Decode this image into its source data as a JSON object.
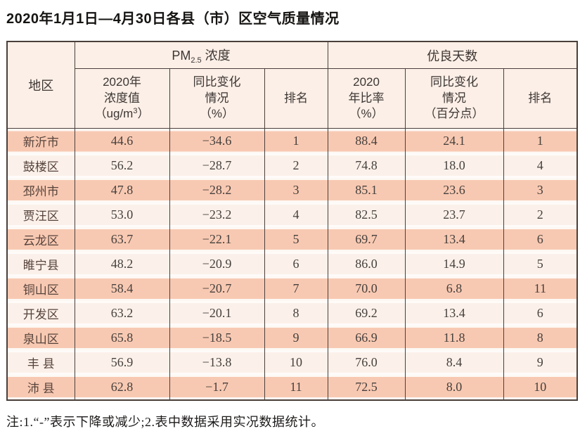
{
  "page": {
    "title": "2020年1月1日—4月30日各县（市）区空气质量情况",
    "note": "注:1.“-”表示下降或减少;2.表中数据采用实况数据统计。"
  },
  "table": {
    "header": {
      "region": "地区",
      "pm25": {
        "prefix": "PM",
        "sub": "2.5",
        "suffix": " 浓度"
      },
      "good_days": "优良天数",
      "pm_value": {
        "l1": "2020年",
        "l2": "浓度值",
        "l3_pre": "（ug/m",
        "l3_sup": "3",
        "l3_post": "）"
      },
      "pm_change": {
        "l1": "同比变化",
        "l2": "情况",
        "l3": "（%）"
      },
      "pm_rank": "排名",
      "gd_ratio": {
        "l1": "2020",
        "l2": "年比率",
        "l3": "（%）"
      },
      "gd_change": {
        "l1": "同比变化",
        "l2": "情况",
        "l3": "（百分点）"
      },
      "gd_rank": "排名"
    }
  },
  "chart_data": {
    "type": "table",
    "title": "2020年1月1日—4月30日各县（市）区空气质量情况",
    "column_groups": [
      "地区",
      "PM2.5浓度",
      "优良天数"
    ],
    "columns": [
      "地区",
      "2020年浓度值（ug/m3）",
      "同比变化情况（%）",
      "排名",
      "2020年比率（%）",
      "同比变化情况（百分点）",
      "排名"
    ],
    "rows": [
      [
        "新沂市",
        "44.6",
        "−34.6",
        "1",
        "88.4",
        "24.1",
        "1"
      ],
      [
        "鼓楼区",
        "56.2",
        "−28.7",
        "2",
        "74.8",
        "18.0",
        "4"
      ],
      [
        "邳州市",
        "47.8",
        "−28.2",
        "3",
        "85.1",
        "23.6",
        "3"
      ],
      [
        "贾汪区",
        "53.0",
        "−23.2",
        "4",
        "82.5",
        "23.7",
        "2"
      ],
      [
        "云龙区",
        "63.7",
        "−22.1",
        "5",
        "69.7",
        "13.4",
        "6"
      ],
      [
        "睢宁县",
        "48.2",
        "−20.9",
        "6",
        "86.0",
        "14.9",
        "5"
      ],
      [
        "铜山区",
        "58.4",
        "−20.7",
        "7",
        "70.0",
        "6.8",
        "11"
      ],
      [
        "开发区",
        "63.2",
        "−20.1",
        "8",
        "69.2",
        "13.4",
        "6"
      ],
      [
        "泉山区",
        "65.8",
        "−18.5",
        "9",
        "66.9",
        "11.8",
        "8"
      ],
      [
        "丰 县",
        "56.9",
        "−13.8",
        "10",
        "76.0",
        "8.4",
        "9"
      ],
      [
        "沛 县",
        "62.8",
        "−1.7",
        "11",
        "72.5",
        "8.0",
        "10"
      ]
    ],
    "note": "注:1.“-”表示下降或减少;2.表中数据采用实况数据统计。",
    "colors": {
      "row_salmon": "#f8c9b2",
      "row_pale": "#fcf1ea",
      "header_bg": "#fcefe7",
      "grid_border": "#4a3f3b",
      "text": "#46403d"
    }
  }
}
